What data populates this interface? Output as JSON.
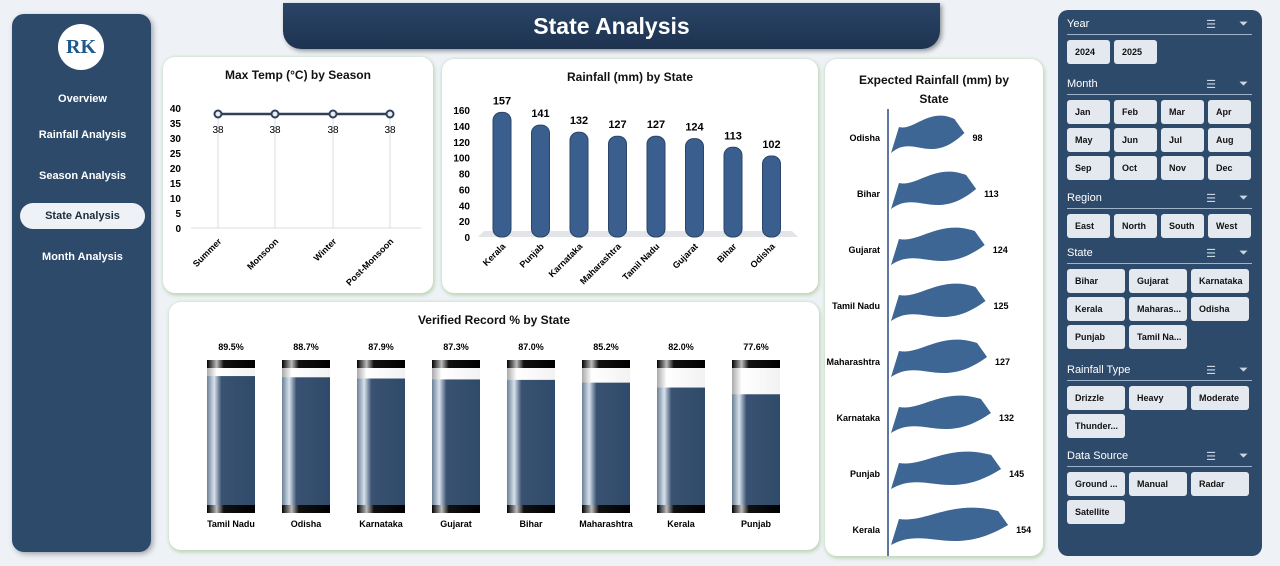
{
  "nav": {
    "items": [
      "Overview",
      "Rainfall Analysis",
      "Season Analysis",
      "State Analysis",
      "Month Analysis"
    ],
    "active": 3,
    "logo": "RK"
  },
  "title": "State Analysis",
  "colors": {
    "accent": "#2e4a6b",
    "bar": "#3a5f8f",
    "panel_border": "#c9dfc0"
  },
  "chart_data": [
    {
      "type": "line",
      "title": "Max Temp (°C) by Season",
      "categories": [
        "Summer",
        "Monsoon",
        "Winter",
        "Post-Monsoon"
      ],
      "values": [
        38,
        38,
        38,
        38
      ],
      "ylim": [
        0,
        40
      ],
      "yticks": [
        0,
        5,
        10,
        15,
        20,
        25,
        30,
        35,
        40
      ],
      "grid": "vertical"
    },
    {
      "type": "bar",
      "title": "Rainfall (mm) by State",
      "categories": [
        "Kerala",
        "Punjab",
        "Karnataka",
        "Maharashtra",
        "Tamil Nadu",
        "Gujarat",
        "Bihar",
        "Odisha"
      ],
      "values": [
        157,
        141,
        132,
        127,
        127,
        124,
        113,
        102
      ],
      "ylim": [
        0,
        160
      ],
      "yticks": [
        0,
        20,
        40,
        60,
        80,
        100,
        120,
        140,
        160
      ]
    },
    {
      "type": "bar",
      "title": "Expected Rainfall (mm) by State",
      "orientation": "horizontal",
      "categories": [
        "Odisha",
        "Bihar",
        "Gujarat",
        "Tamil Nadu",
        "Maharashtra",
        "Karnataka",
        "Punjab",
        "Kerala"
      ],
      "values": [
        98,
        113,
        124,
        125,
        127,
        132,
        145,
        154
      ]
    },
    {
      "type": "bar",
      "title": "Verified Record % by State",
      "categories": [
        "Tamil Nadu",
        "Odisha",
        "Karnataka",
        "Gujarat",
        "Bihar",
        "Maharashtra",
        "Kerala",
        "Punjab"
      ],
      "values": [
        89.5,
        88.7,
        87.9,
        87.3,
        87.0,
        85.2,
        82.0,
        77.6
      ],
      "labels": [
        "89.5%",
        "88.7%",
        "87.9%",
        "87.3%",
        "87.0%",
        "85.2%",
        "82.0%",
        "77.6%"
      ],
      "ylim": [
        0,
        100
      ]
    }
  ],
  "slicers": [
    {
      "title": "Year",
      "items": [
        "2024",
        "2025"
      ]
    },
    {
      "title": "Month",
      "items": [
        "Jan",
        "Feb",
        "Mar",
        "Apr",
        "May",
        "Jun",
        "Jul",
        "Aug",
        "Sep",
        "Oct",
        "Nov",
        "Dec"
      ]
    },
    {
      "title": "Region",
      "items": [
        "East",
        "North",
        "South",
        "West"
      ]
    },
    {
      "title": "State",
      "items": [
        "Bihar",
        "Gujarat",
        "Karnataka",
        "Kerala",
        "Maharas...",
        "Odisha",
        "Punjab",
        "Tamil Na..."
      ]
    },
    {
      "title": "Rainfall Type",
      "items": [
        "Drizzle",
        "Heavy",
        "Moderate",
        "Thunder..."
      ]
    },
    {
      "title": "Data Source",
      "items": [
        "Ground ...",
        "Manual",
        "Radar",
        "Satellite"
      ]
    }
  ],
  "icons": {
    "multiselect": "multi-select-icon",
    "clear": "clear-filter-icon"
  }
}
